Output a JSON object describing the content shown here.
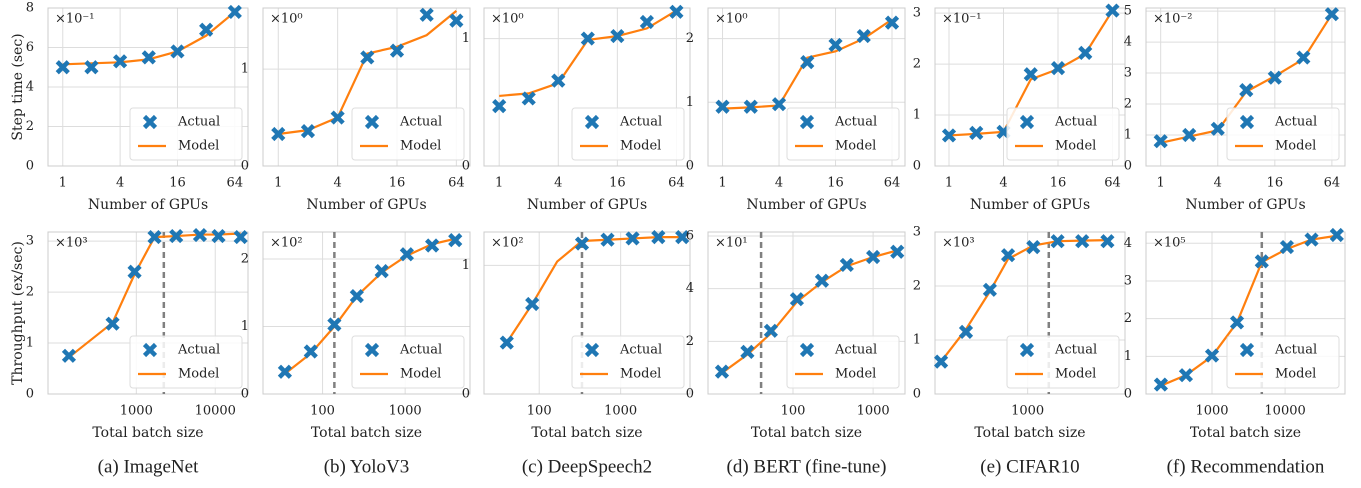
{
  "captions": [
    "(a) ImageNet",
    "(b) YoloV3",
    "(c) DeepSpeech2",
    "(d) BERT (fine-tune)",
    "(e) CIFAR10",
    "(f) Recommendation"
  ],
  "chart_data": [
    {
      "type": "line",
      "xscale": "log",
      "grid": true,
      "legend": "lower right",
      "y_label": "Step time (sec)",
      "x_label": "Number of GPUs",
      "annotation": "×10⁻¹",
      "x": [
        1,
        2,
        4,
        8,
        16,
        32,
        64
      ],
      "xlim": [
        0.7,
        88
      ],
      "xticks": [
        1,
        4,
        16,
        64
      ],
      "ylim": [
        0,
        8
      ],
      "yticks": [
        0,
        2,
        4,
        6,
        8
      ],
      "series": [
        {
          "name": "Actual",
          "style": "marker",
          "color": "#1f77b4",
          "values": [
            5.0,
            5.0,
            5.3,
            5.5,
            5.8,
            6.9,
            7.8
          ]
        },
        {
          "name": "Model",
          "style": "line",
          "color": "#ff7f0e",
          "values": [
            5.15,
            5.2,
            5.25,
            5.4,
            5.8,
            6.6,
            7.8
          ]
        }
      ]
    },
    {
      "type": "line",
      "xscale": "log",
      "grid": true,
      "legend": "lower right",
      "x_label": "Number of GPUs",
      "annotation": "×10⁰",
      "x": [
        1,
        2,
        4,
        8,
        16,
        32,
        64
      ],
      "xlim": [
        0.7,
        88
      ],
      "xticks": [
        1,
        4,
        16,
        64
      ],
      "ylim": [
        0,
        1.63
      ],
      "yticks": [
        0,
        1
      ],
      "series": [
        {
          "name": "Actual",
          "style": "marker",
          "color": "#1f77b4",
          "values": [
            0.33,
            0.36,
            0.5,
            1.12,
            1.19,
            1.56,
            1.5
          ]
        },
        {
          "name": "Model",
          "style": "line",
          "color": "#ff7f0e",
          "values": [
            0.33,
            0.37,
            0.5,
            1.16,
            1.23,
            1.35,
            1.6
          ]
        }
      ]
    },
    {
      "type": "line",
      "xscale": "log",
      "grid": true,
      "legend": "lower right",
      "x_label": "Number of GPUs",
      "annotation": "×10⁰",
      "x": [
        1,
        2,
        4,
        8,
        16,
        32,
        64
      ],
      "xlim": [
        0.7,
        88
      ],
      "xticks": [
        1,
        4,
        16,
        64
      ],
      "ylim": [
        0,
        1.24
      ],
      "yticks": [
        0,
        1
      ],
      "series": [
        {
          "name": "Actual",
          "style": "marker",
          "color": "#1f77b4",
          "values": [
            0.47,
            0.53,
            0.67,
            1.0,
            1.02,
            1.13,
            1.21
          ]
        },
        {
          "name": "Model",
          "style": "line",
          "color": "#ff7f0e",
          "values": [
            0.55,
            0.57,
            0.65,
            0.99,
            1.02,
            1.08,
            1.22
          ]
        }
      ]
    },
    {
      "type": "line",
      "xscale": "log",
      "grid": true,
      "legend": "lower right",
      "x_label": "Number of GPUs",
      "annotation": "×10⁰",
      "x": [
        1,
        2,
        4,
        8,
        16,
        32,
        64
      ],
      "xlim": [
        0.7,
        88
      ],
      "xticks": [
        1,
        4,
        16,
        64
      ],
      "ylim": [
        0,
        2.48
      ],
      "yticks": [
        0,
        1,
        2
      ],
      "series": [
        {
          "name": "Actual",
          "style": "marker",
          "color": "#1f77b4",
          "values": [
            0.93,
            0.93,
            0.97,
            1.63,
            1.9,
            2.04,
            2.25
          ]
        },
        {
          "name": "Model",
          "style": "line",
          "color": "#ff7f0e",
          "values": [
            0.9,
            0.92,
            0.95,
            1.7,
            1.8,
            2.0,
            2.3
          ]
        }
      ]
    },
    {
      "type": "line",
      "xscale": "log",
      "grid": true,
      "legend": "lower right",
      "x_label": "Number of GPUs",
      "annotation": "×10⁻¹",
      "x": [
        1,
        2,
        4,
        8,
        16,
        32,
        64
      ],
      "xlim": [
        0.7,
        88
      ],
      "xticks": [
        1,
        4,
        16,
        64
      ],
      "ylim": [
        0,
        3.1
      ],
      "yticks": [
        0,
        1,
        2,
        3
      ],
      "series": [
        {
          "name": "Actual",
          "style": "marker",
          "color": "#1f77b4",
          "values": [
            0.6,
            0.65,
            0.67,
            1.8,
            1.92,
            2.22,
            3.05
          ]
        },
        {
          "name": "Model",
          "style": "line",
          "color": "#ff7f0e",
          "values": [
            0.6,
            0.63,
            0.67,
            1.7,
            1.9,
            2.2,
            3.05
          ]
        }
      ]
    },
    {
      "type": "line",
      "xscale": "log",
      "grid": true,
      "legend": "lower right",
      "x_label": "Number of GPUs",
      "annotation": "×10⁻²",
      "x": [
        1,
        2,
        4,
        8,
        16,
        32,
        64
      ],
      "xlim": [
        0.7,
        88
      ],
      "xticks": [
        1,
        4,
        16,
        64
      ],
      "ylim": [
        0,
        5.1
      ],
      "yticks": [
        0,
        1,
        2,
        3,
        4,
        5
      ],
      "series": [
        {
          "name": "Actual",
          "style": "marker",
          "color": "#1f77b4",
          "values": [
            0.8,
            1.0,
            1.2,
            2.45,
            2.85,
            3.5,
            4.9
          ]
        },
        {
          "name": "Model",
          "style": "line",
          "color": "#ff7f0e",
          "values": [
            0.75,
            0.95,
            1.15,
            2.4,
            2.9,
            3.45,
            4.9
          ]
        }
      ]
    },
    {
      "type": "line",
      "xscale": "log",
      "grid": true,
      "legend": "lower right",
      "y_label": "Throughput (ex/sec)",
      "x_label": "Total batch size",
      "annotation": "×10³",
      "vline": 2230,
      "x": [
        140,
        500,
        950,
        1700,
        3200,
        6400,
        11000,
        21000
      ],
      "xlim": [
        76,
        26000
      ],
      "xticks": [
        1000,
        10000
      ],
      "ylim": [
        0,
        3.18
      ],
      "yticks": [
        0,
        1,
        2,
        3
      ],
      "series": [
        {
          "name": "Actual",
          "style": "marker",
          "color": "#1f77b4",
          "values": [
            0.75,
            1.38,
            2.4,
            3.08,
            3.1,
            3.12,
            3.1,
            3.08
          ]
        },
        {
          "name": "Model",
          "style": "line",
          "color": "#ff7f0e",
          "values": [
            0.72,
            1.4,
            2.35,
            3.08,
            3.1,
            3.13,
            3.13,
            3.15
          ]
        }
      ]
    },
    {
      "type": "line",
      "xscale": "log",
      "grid": true,
      "legend": "lower right",
      "x_label": "Total batch size",
      "annotation": "×10²",
      "vline": 139,
      "x": [
        35,
        72,
        139,
        260,
        520,
        1050,
        2120,
        4040
      ],
      "xlim": [
        19,
        6100
      ],
      "xticks": [
        100,
        1000
      ],
      "ylim": [
        0,
        2.4
      ],
      "yticks": [
        0,
        1,
        2
      ],
      "series": [
        {
          "name": "Actual",
          "style": "marker",
          "color": "#1f77b4",
          "values": [
            0.33,
            0.63,
            1.03,
            1.45,
            1.82,
            2.07,
            2.2,
            2.28
          ]
        },
        {
          "name": "Model",
          "style": "line",
          "color": "#ff7f0e",
          "values": [
            0.3,
            0.6,
            1.0,
            1.45,
            1.8,
            2.05,
            2.22,
            2.3
          ]
        }
      ]
    },
    {
      "type": "line",
      "xscale": "log",
      "grid": true,
      "legend": "lower right",
      "x_label": "Total batch size",
      "annotation": "×10²",
      "vline": 335,
      "x": [
        40,
        82,
        166,
        335,
        690,
        1400,
        2900,
        5700
      ],
      "xlim": [
        21,
        7100
      ],
      "xticks": [
        100,
        1000
      ],
      "ylim": [
        0,
        1.26
      ],
      "yticks": [
        0,
        1
      ],
      "series": [
        {
          "name": "Actual",
          "style": "marker",
          "color": "#1f77b4",
          "values": [
            0.4,
            0.7,
            null,
            1.17,
            1.2,
            1.21,
            1.22,
            1.22
          ]
        },
        {
          "name": "Model",
          "style": "line",
          "color": "#ff7f0e",
          "values": [
            0.4,
            0.7,
            1.03,
            1.19,
            1.2,
            1.21,
            1.22,
            1.22
          ]
        }
      ]
    },
    {
      "type": "line",
      "xscale": "log",
      "grid": true,
      "legend": "lower right",
      "x_label": "Total batch size",
      "annotation": "×10¹",
      "vline": 40,
      "x": [
        13,
        27,
        53,
        112,
        230,
        470,
        1000,
        2000
      ],
      "xlim": [
        8.7,
        2500
      ],
      "xticks": [
        100,
        1000
      ],
      "ylim": [
        0,
        6.15
      ],
      "yticks": [
        0,
        2,
        4,
        6
      ],
      "series": [
        {
          "name": "Actual",
          "style": "marker",
          "color": "#1f77b4",
          "values": [
            0.85,
            1.6,
            2.4,
            3.6,
            4.3,
            4.9,
            5.2,
            5.4
          ]
        },
        {
          "name": "Model",
          "style": "line",
          "color": "#ff7f0e",
          "values": [
            0.8,
            1.5,
            2.3,
            3.5,
            4.25,
            4.85,
            5.2,
            5.45
          ]
        }
      ]
    },
    {
      "type": "line",
      "xscale": "log",
      "grid": true,
      "legend": "lower right",
      "x_label": "Total batch size",
      "annotation": "×10³",
      "vline": 1800,
      "x": [
        90,
        180,
        350,
        580,
        1170,
        2300,
        4560,
        9200
      ],
      "xlim": [
        76,
        15000
      ],
      "xticks": [
        1000
      ],
      "ylim": [
        0,
        3.0
      ],
      "yticks": [
        0,
        1,
        2,
        3
      ],
      "series": [
        {
          "name": "Actual",
          "style": "marker",
          "color": "#1f77b4",
          "values": [
            0.6,
            1.15,
            1.93,
            2.57,
            2.72,
            2.83,
            2.83,
            2.83
          ]
        },
        {
          "name": "Model",
          "style": "line",
          "color": "#ff7f0e",
          "values": [
            0.6,
            1.2,
            1.9,
            2.5,
            2.75,
            2.83,
            2.84,
            2.85
          ]
        }
      ]
    },
    {
      "type": "line",
      "xscale": "log",
      "grid": true,
      "legend": "lower right",
      "x_label": "Total batch size",
      "annotation": "×10⁵",
      "vline": 4800,
      "x": [
        200,
        440,
        1000,
        2200,
        4800,
        10600,
        23000,
        51000
      ],
      "xlim": [
        125,
        66000
      ],
      "xticks": [
        1000,
        10000
      ],
      "ylim": [
        0,
        4.3
      ],
      "yticks": [
        0,
        1,
        2,
        3,
        4
      ],
      "series": [
        {
          "name": "Actual",
          "style": "marker",
          "color": "#1f77b4",
          "values": [
            0.25,
            0.5,
            1.02,
            1.9,
            3.52,
            3.9,
            4.1,
            4.22
          ]
        },
        {
          "name": "Model",
          "style": "line",
          "color": "#ff7f0e",
          "values": [
            0.22,
            0.5,
            1.0,
            1.9,
            3.5,
            3.85,
            4.1,
            4.2
          ]
        }
      ]
    }
  ]
}
